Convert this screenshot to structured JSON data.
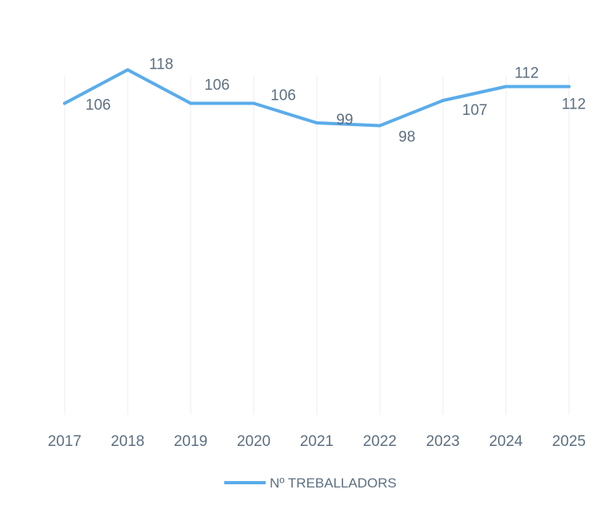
{
  "chart_data": {
    "type": "line",
    "categories": [
      "2017",
      "2018",
      "2019",
      "2020",
      "2021",
      "2022",
      "2023",
      "2024",
      "2025"
    ],
    "series": [
      {
        "name": "Nº TREBALLADORS",
        "values": [
          106,
          118,
          106,
          106,
          99,
          98,
          107,
          112,
          112
        ]
      }
    ],
    "grid": {
      "vertical": true,
      "horizontal": false
    },
    "legend": {
      "position": "bottom",
      "label": "Nº TREBALLADORS"
    },
    "colors": {
      "line": "#5aacea",
      "text": "#5d6f80",
      "grid": "#ececec"
    }
  }
}
